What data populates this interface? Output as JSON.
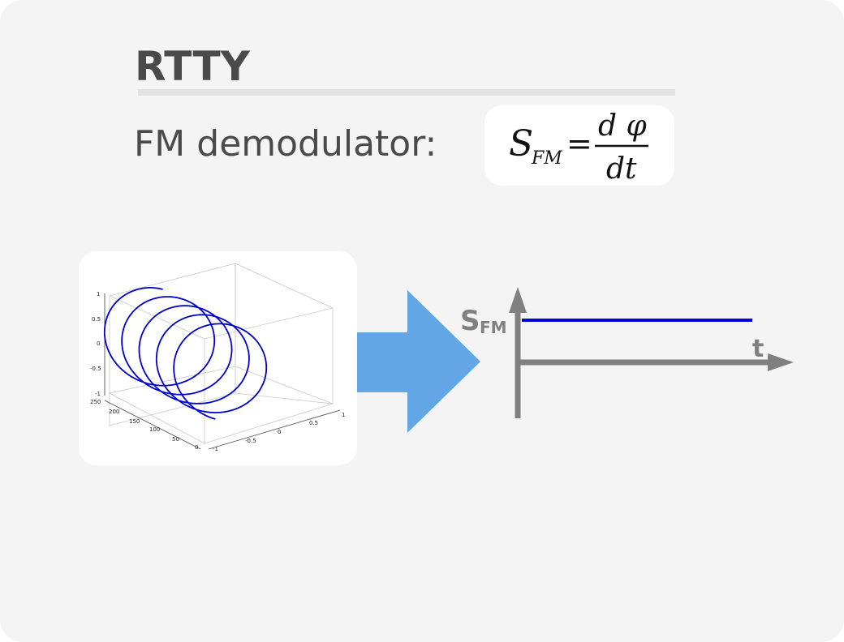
{
  "slide": {
    "title": "RTTY",
    "subtitle": "FM demodulator:"
  },
  "formula": {
    "lhs_symbol": "S",
    "lhs_subscript": "FM",
    "equals": "=",
    "numerator": "d φ",
    "denominator": "dt"
  },
  "output_graph": {
    "y_label": "S",
    "y_label_subscript": "FM",
    "x_label": "t",
    "signal_color": "#0000dd",
    "axis_color": "#808080"
  },
  "arrow": {
    "color": "#63a6e6"
  },
  "chart_data": {
    "type": "line3d",
    "title": "",
    "description_series": "helix",
    "series": [
      {
        "name": "helix",
        "color": "#0000cc",
        "turns": 4.5,
        "t_range": [
          0,
          250
        ],
        "amplitude": 1
      }
    ],
    "z_ticks": [
      "1",
      "0.5",
      "0",
      "-0.5",
      "-1"
    ],
    "t_ticks": [
      "250",
      "200",
      "150",
      "100",
      "50",
      "0"
    ],
    "x_ticks": [
      "-1",
      "-0.5",
      "0",
      "0.5",
      "1"
    ]
  }
}
